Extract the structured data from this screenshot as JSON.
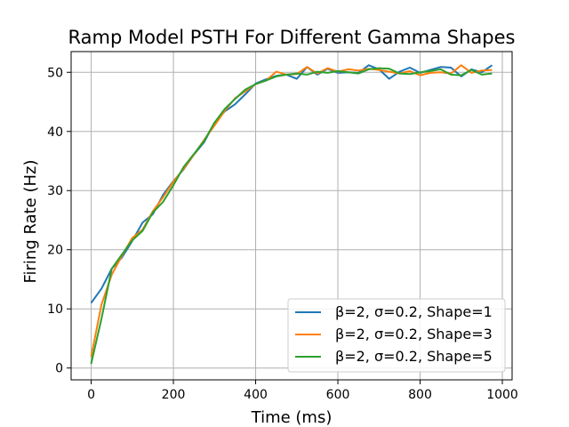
{
  "chart_data": {
    "type": "line",
    "title": "Ramp Model PSTH For Different Gamma Shapes",
    "xlabel": "Time (ms)",
    "ylabel": "Firing Rate (Hz)",
    "xlim": [
      -48.75,
      1023.75
    ],
    "ylim": [
      -2.0,
      53.5
    ],
    "xticks": [
      0,
      200,
      400,
      600,
      800,
      1000
    ],
    "yticks": [
      0,
      10,
      20,
      30,
      40,
      50
    ],
    "grid": true,
    "legend_position": "lower-right",
    "x": [
      0,
      25,
      50,
      75,
      100,
      125,
      150,
      175,
      200,
      225,
      250,
      275,
      300,
      325,
      350,
      375,
      400,
      425,
      450,
      475,
      500,
      525,
      550,
      575,
      600,
      625,
      650,
      675,
      700,
      725,
      750,
      775,
      800,
      825,
      850,
      875,
      900,
      925,
      950,
      975
    ],
    "series": [
      {
        "name": "β=2, σ=0.2, Shape=1",
        "color": "#1f77b4",
        "values": [
          11.0,
          13.4,
          16.8,
          18.7,
          21.5,
          24.6,
          26.0,
          29.3,
          31.6,
          33.6,
          36.1,
          38.2,
          41.5,
          43.4,
          44.6,
          46.3,
          48.1,
          48.8,
          49.4,
          49.6,
          48.9,
          50.9,
          49.6,
          50.6,
          49.9,
          50.0,
          49.9,
          51.2,
          50.5,
          48.9,
          50.1,
          50.8,
          49.9,
          50.4,
          50.9,
          50.8,
          49.3,
          50.5,
          50.0,
          51.2
        ]
      },
      {
        "name": "β=2, σ=0.2, Shape=3",
        "color": "#ff7f0e",
        "values": [
          1.9,
          10.7,
          15.8,
          19.0,
          22.0,
          23.4,
          26.5,
          28.9,
          31.5,
          33.7,
          36.1,
          38.6,
          41.0,
          43.5,
          45.6,
          46.8,
          48.0,
          48.6,
          50.1,
          49.6,
          49.7,
          50.9,
          49.8,
          50.7,
          50.1,
          50.5,
          50.3,
          50.6,
          50.4,
          50.1,
          49.8,
          50.2,
          49.5,
          49.9,
          50.0,
          49.8,
          51.2,
          49.9,
          50.3,
          50.4
        ]
      },
      {
        "name": "β=2, σ=0.2, Shape=5",
        "color": "#2ca02c",
        "values": [
          0.7,
          8.3,
          16.8,
          19.2,
          21.6,
          23.2,
          26.3,
          28.1,
          30.9,
          34.0,
          36.2,
          38.4,
          41.5,
          43.8,
          45.5,
          47.1,
          48.0,
          48.6,
          49.3,
          49.6,
          49.8,
          49.6,
          50.1,
          49.9,
          50.2,
          50.0,
          49.8,
          50.5,
          50.7,
          50.6,
          49.8,
          49.7,
          50.0,
          50.2,
          50.5,
          49.6,
          49.5,
          50.4,
          49.6,
          49.8
        ]
      }
    ]
  }
}
